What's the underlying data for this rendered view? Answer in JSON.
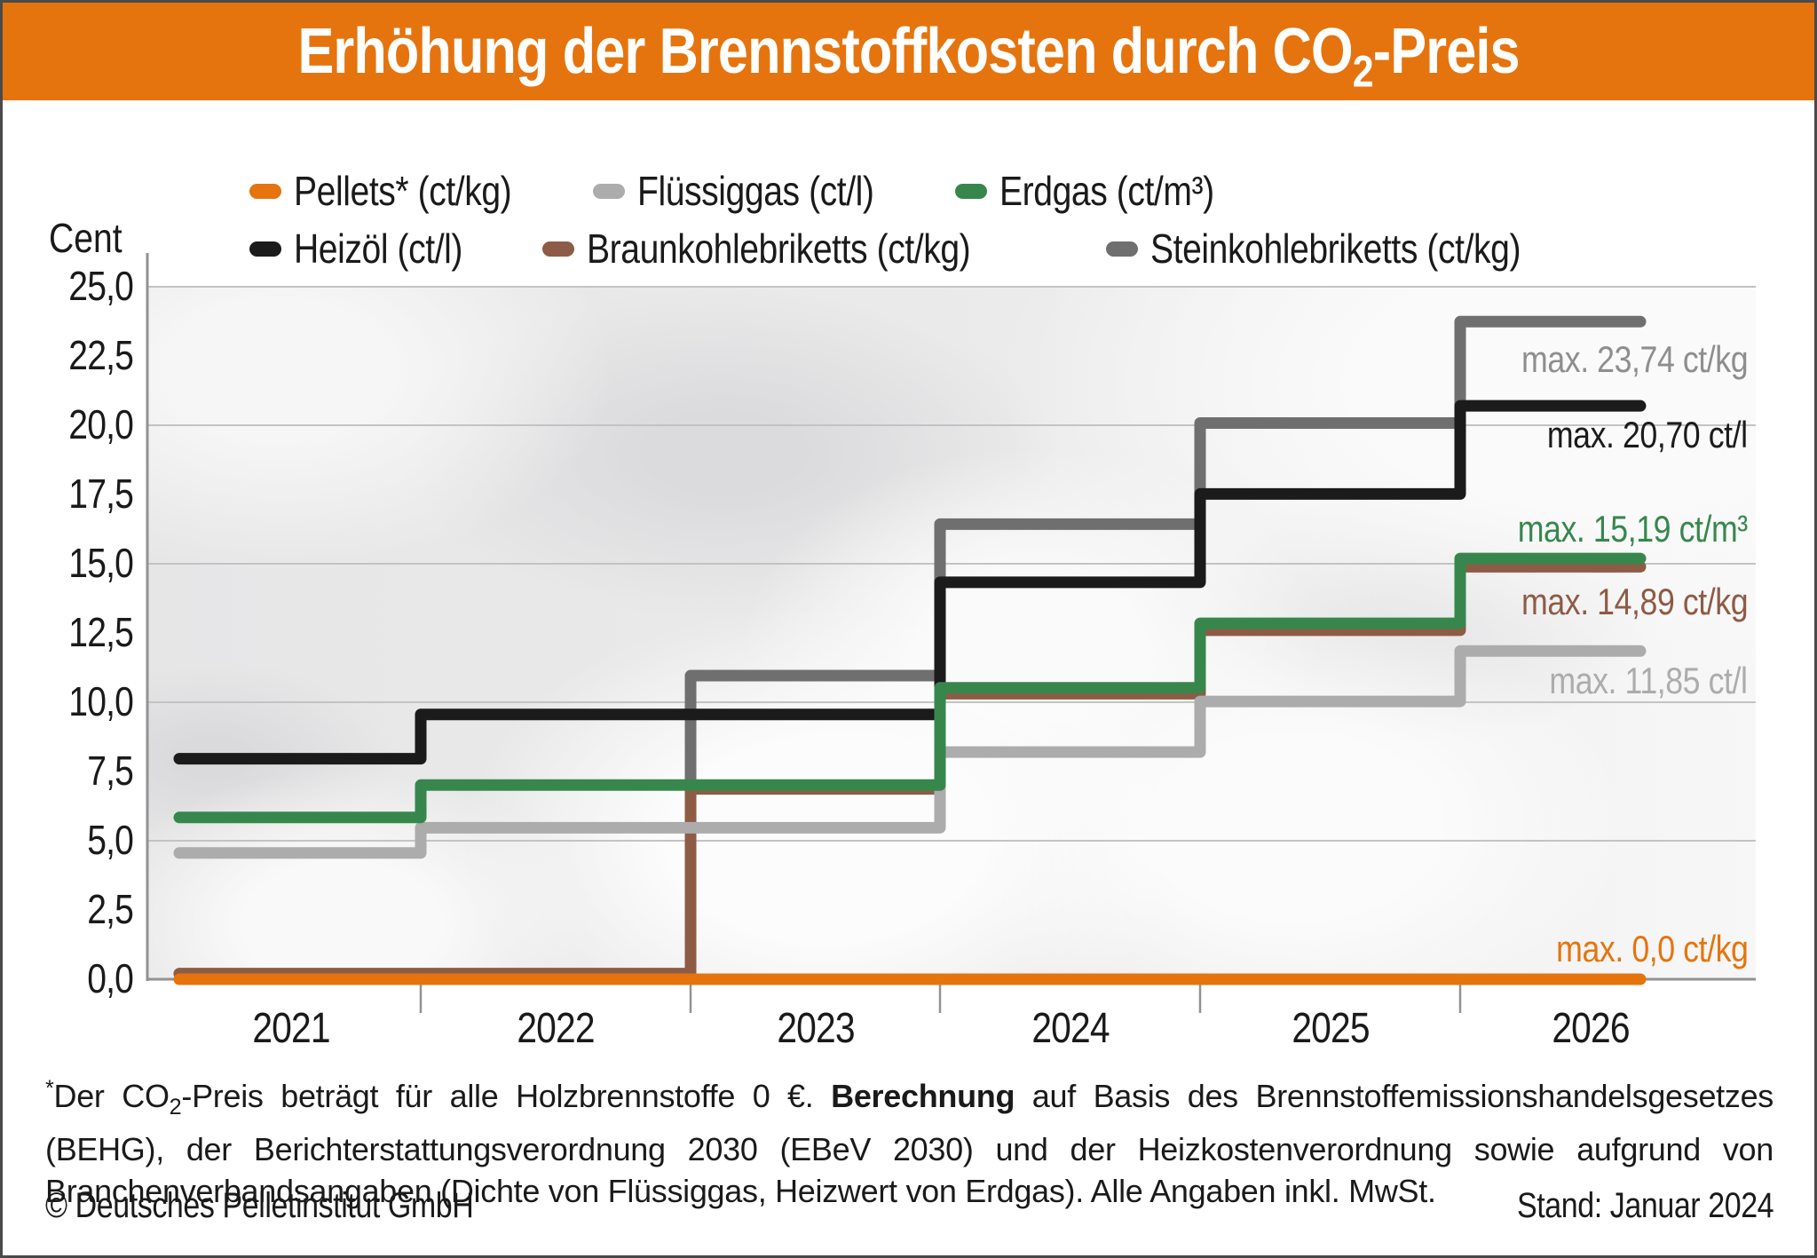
{
  "header": {
    "title_runs": [
      {
        "t": "Erhöhung der Brennstoffkosten durch CO"
      },
      {
        "t": "2",
        "sub": true
      },
      {
        "t": "-Preis"
      }
    ],
    "bg_color": "#E5740E",
    "text_color": "#FFFFFF"
  },
  "chart_data": {
    "type": "line",
    "step": true,
    "title": "Erhöhung der Brennstoffkosten durch CO2-Preis",
    "ylabel": "Cent",
    "ylim": [
      0,
      25
    ],
    "ytick_step": 2.5,
    "gridline_step": 5,
    "grid": "horizontal-only",
    "legend_position": "top",
    "x_years": [
      "2021",
      "2022",
      "2023",
      "2024",
      "2025",
      "2026"
    ],
    "y_tick_labels": [
      "0,0",
      "2,5",
      "5,0",
      "7,5",
      "10,0",
      "12,5",
      "15,0",
      "17,5",
      "20,0",
      "22,5",
      "25,0"
    ],
    "series": [
      {
        "id": "pellets",
        "name": "Pellets* (ct/kg)",
        "unit": "ct/kg",
        "color": "#E5740E",
        "values": [
          0,
          0,
          0,
          0,
          0,
          0
        ],
        "max_label": "max. 0,0 ct/kg"
      },
      {
        "id": "fluessiggas",
        "name": "Flüssiggas (ct/l)",
        "unit": "ct/l",
        "color": "#ACACAC",
        "values": [
          4.56,
          5.47,
          5.47,
          8.2,
          10.03,
          11.85
        ],
        "max_label": "max. 11,85 ct/l"
      },
      {
        "id": "erdgas",
        "name": "Erdgas (ct/m³)",
        "unit": "ct/m³",
        "color": "#37874D",
        "values": [
          5.84,
          7.01,
          7.01,
          10.52,
          12.85,
          15.19
        ],
        "max_label": "max. 15,19 ct/m³"
      },
      {
        "id": "heizoel",
        "name": "Heizöl (ct/l)",
        "unit": "ct/l",
        "color": "#1B1B1B",
        "values": [
          7.96,
          9.56,
          9.56,
          14.33,
          17.52,
          20.7
        ],
        "max_label": "max. 20,70 ct/l"
      },
      {
        "id": "braunkohlebriketts",
        "name": "Braunkohlebriketts (ct/kg)",
        "unit": "ct/kg",
        "color": "#8E5B45",
        "values": [
          0,
          0,
          6.87,
          10.31,
          12.6,
          14.89
        ],
        "max_label": "max. 14,89 ct/kg"
      },
      {
        "id": "steinkohlebriketts",
        "name": "Steinkohlebriketts (ct/kg)",
        "unit": "ct/kg",
        "color": "#6F6F6F",
        "values": [
          0,
          0,
          10.96,
          16.43,
          20.08,
          23.74
        ],
        "max_label": "max. 23,74 ct/kg",
        "max_label_color": "#8E8E8E"
      }
    ],
    "co2_price_note": "Stufen zum Jahreswechsel"
  },
  "axis_colors": {
    "gridline": "#C3C3C6",
    "axis": "#929292"
  },
  "footnote": {
    "runs": [
      {
        "t": "*",
        "sup": true
      },
      {
        "t": "Der CO"
      },
      {
        "t": "2",
        "sub": true
      },
      {
        "t": "-Preis beträgt für alle Holzbrennstoffe 0 €. "
      },
      {
        "t": "Berechnung",
        "bold": true
      },
      {
        "t": " auf Basis des Brennstoffemissionshandelsgesetzes (BEHG), der Berichterstattungsverordnung 2030 (EBeV 2030) und der Heizkostenverordnung sowie aufgrund von Branchenverbandsangaben (Dichte von Flüssiggas, Heizwert von Erdgas). Alle Angaben inkl. MwSt."
      }
    ]
  },
  "footer": {
    "copyright": "© Deutsches Pelletinstitut GmbH",
    "stand": "Stand: Januar 2024"
  }
}
